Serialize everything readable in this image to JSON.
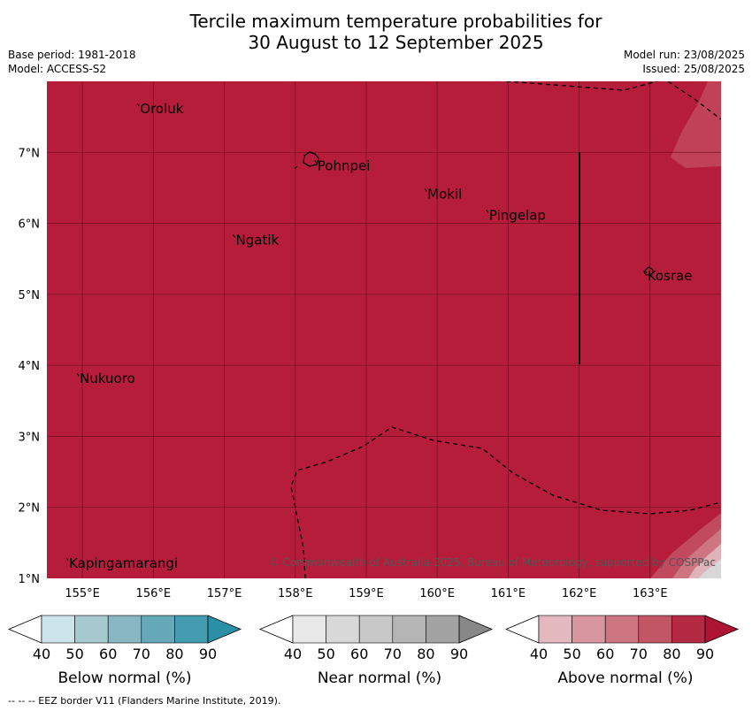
{
  "title": {
    "line1": "Tercile maximum temperature probabilities for",
    "line2": "30 August to 12 September 2025"
  },
  "meta": {
    "base_period": "Base period: 1981-2018",
    "model": "Model: ACCESS-S2",
    "model_run": "Model run: 23/08/2025",
    "issued": "Issued: 25/08/2025"
  },
  "map": {
    "lat_ticks": [
      {
        "value": 1,
        "label": "1°N"
      },
      {
        "value": 2,
        "label": "2°N"
      },
      {
        "value": 3,
        "label": "3°N"
      },
      {
        "value": 4,
        "label": "4°N"
      },
      {
        "value": 5,
        "label": "5°N"
      },
      {
        "value": 6,
        "label": "6°N"
      },
      {
        "value": 7,
        "label": "7°N"
      }
    ],
    "lon_ticks": [
      {
        "value": 155,
        "label": "155°E"
      },
      {
        "value": 156,
        "label": "156°E"
      },
      {
        "value": 157,
        "label": "157°E"
      },
      {
        "value": 158,
        "label": "158°E"
      },
      {
        "value": 159,
        "label": "159°E"
      },
      {
        "value": 160,
        "label": "160°E"
      },
      {
        "value": 161,
        "label": "161°E"
      },
      {
        "value": 162,
        "label": "162°E"
      },
      {
        "value": 163,
        "label": "163°E"
      }
    ],
    "places": [
      {
        "name": "Oroluk",
        "lon": 155.8,
        "lat": 7.65
      },
      {
        "name": "Pohnpei",
        "lon": 158.3,
        "lat": 6.85
      },
      {
        "name": "Mokil",
        "lon": 159.85,
        "lat": 6.45
      },
      {
        "name": "Pingelap",
        "lon": 160.72,
        "lat": 6.15
      },
      {
        "name": "Ngatik",
        "lon": 157.15,
        "lat": 5.8
      },
      {
        "name": "Kosrae",
        "lon": 162.95,
        "lat": 5.3
      },
      {
        "name": "Nukuoro",
        "lon": 154.95,
        "lat": 3.85
      },
      {
        "name": "Kapingamarangi",
        "lon": 154.8,
        "lat": 1.25
      }
    ],
    "copyright": "© Commonwealth of Australia 2025, Bureau of Meteorology, supported by COSPPac",
    "fill_color": "#b51d3a"
  },
  "colorbars": [
    {
      "name": "below",
      "title": "Below normal (%)",
      "colors": [
        "#cbe3e9",
        "#a6c9d0",
        "#89b7c1",
        "#65a9b8",
        "#439cb0",
        "#2b8fa6"
      ]
    },
    {
      "name": "near",
      "title": "Near normal (%)",
      "colors": [
        "#e8e8e8",
        "#d8d8d8",
        "#c8c8c8",
        "#b5b5b5",
        "#a3a3a3",
        "#888888"
      ]
    },
    {
      "name": "above",
      "title": "Above normal (%)",
      "colors": [
        "#e4b8bf",
        "#d7959f",
        "#cd7580",
        "#c35665",
        "#b42a44",
        "#ae1535"
      ]
    }
  ],
  "colorbar_ticks": [
    "40",
    "50",
    "60",
    "70",
    "80",
    "90"
  ],
  "footer": "--  --  -- EEZ border V11 (Flanders Marine Institute, 2019)."
}
